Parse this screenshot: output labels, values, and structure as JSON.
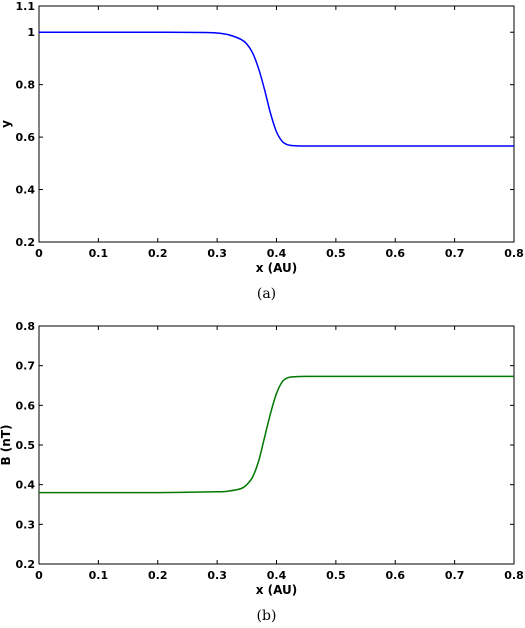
{
  "chart_data": [
    {
      "type": "line",
      "caption": "(a)",
      "xlabel": "x (AU)",
      "ylabel": "y",
      "xlim": [
        0,
        0.8
      ],
      "ylim": [
        0.2,
        1.1
      ],
      "xticks": [
        "0",
        "0.1",
        "0.2",
        "0.3",
        "0.4",
        "0.5",
        "0.6",
        "0.7",
        "0.8"
      ],
      "yticks": [
        "0.2",
        "0.4",
        "0.6",
        "0.8",
        "1",
        "1.1"
      ],
      "grid": false,
      "color": "#0000ff",
      "series": [
        {
          "x": [
            0,
            0.1,
            0.2,
            0.28,
            0.3,
            0.32,
            0.34,
            0.35,
            0.36,
            0.37,
            0.38,
            0.39,
            0.4,
            0.41,
            0.42,
            0.43,
            0.45,
            0.5,
            0.6,
            0.7,
            0.8
          ],
          "y": [
            1,
            1,
            1,
            0.999,
            0.997,
            0.99,
            0.973,
            0.955,
            0.92,
            0.86,
            0.78,
            0.69,
            0.62,
            0.583,
            0.57,
            0.567,
            0.566,
            0.566,
            0.566,
            0.566,
            0.566
          ]
        }
      ]
    },
    {
      "type": "line",
      "caption": "(b)",
      "xlabel": "x (AU)",
      "ylabel": "B (nT)",
      "xlim": [
        0,
        0.8
      ],
      "ylim": [
        0.2,
        0.8
      ],
      "xticks": [
        "0",
        "0.1",
        "0.2",
        "0.3",
        "0.4",
        "0.5",
        "0.6",
        "0.7",
        "0.8"
      ],
      "yticks": [
        "0.2",
        "0.3",
        "0.4",
        "0.5",
        "0.6",
        "0.7",
        "0.8"
      ],
      "grid": false,
      "color": "#007700",
      "series": [
        {
          "x": [
            0,
            0.1,
            0.2,
            0.3,
            0.32,
            0.34,
            0.35,
            0.36,
            0.37,
            0.38,
            0.39,
            0.4,
            0.41,
            0.42,
            0.43,
            0.45,
            0.5,
            0.6,
            0.7,
            0.8
          ],
          "y": [
            0.38,
            0.38,
            0.38,
            0.382,
            0.384,
            0.39,
            0.4,
            0.42,
            0.46,
            0.52,
            0.58,
            0.63,
            0.66,
            0.67,
            0.672,
            0.673,
            0.673,
            0.673,
            0.673,
            0.673
          ]
        }
      ]
    }
  ]
}
